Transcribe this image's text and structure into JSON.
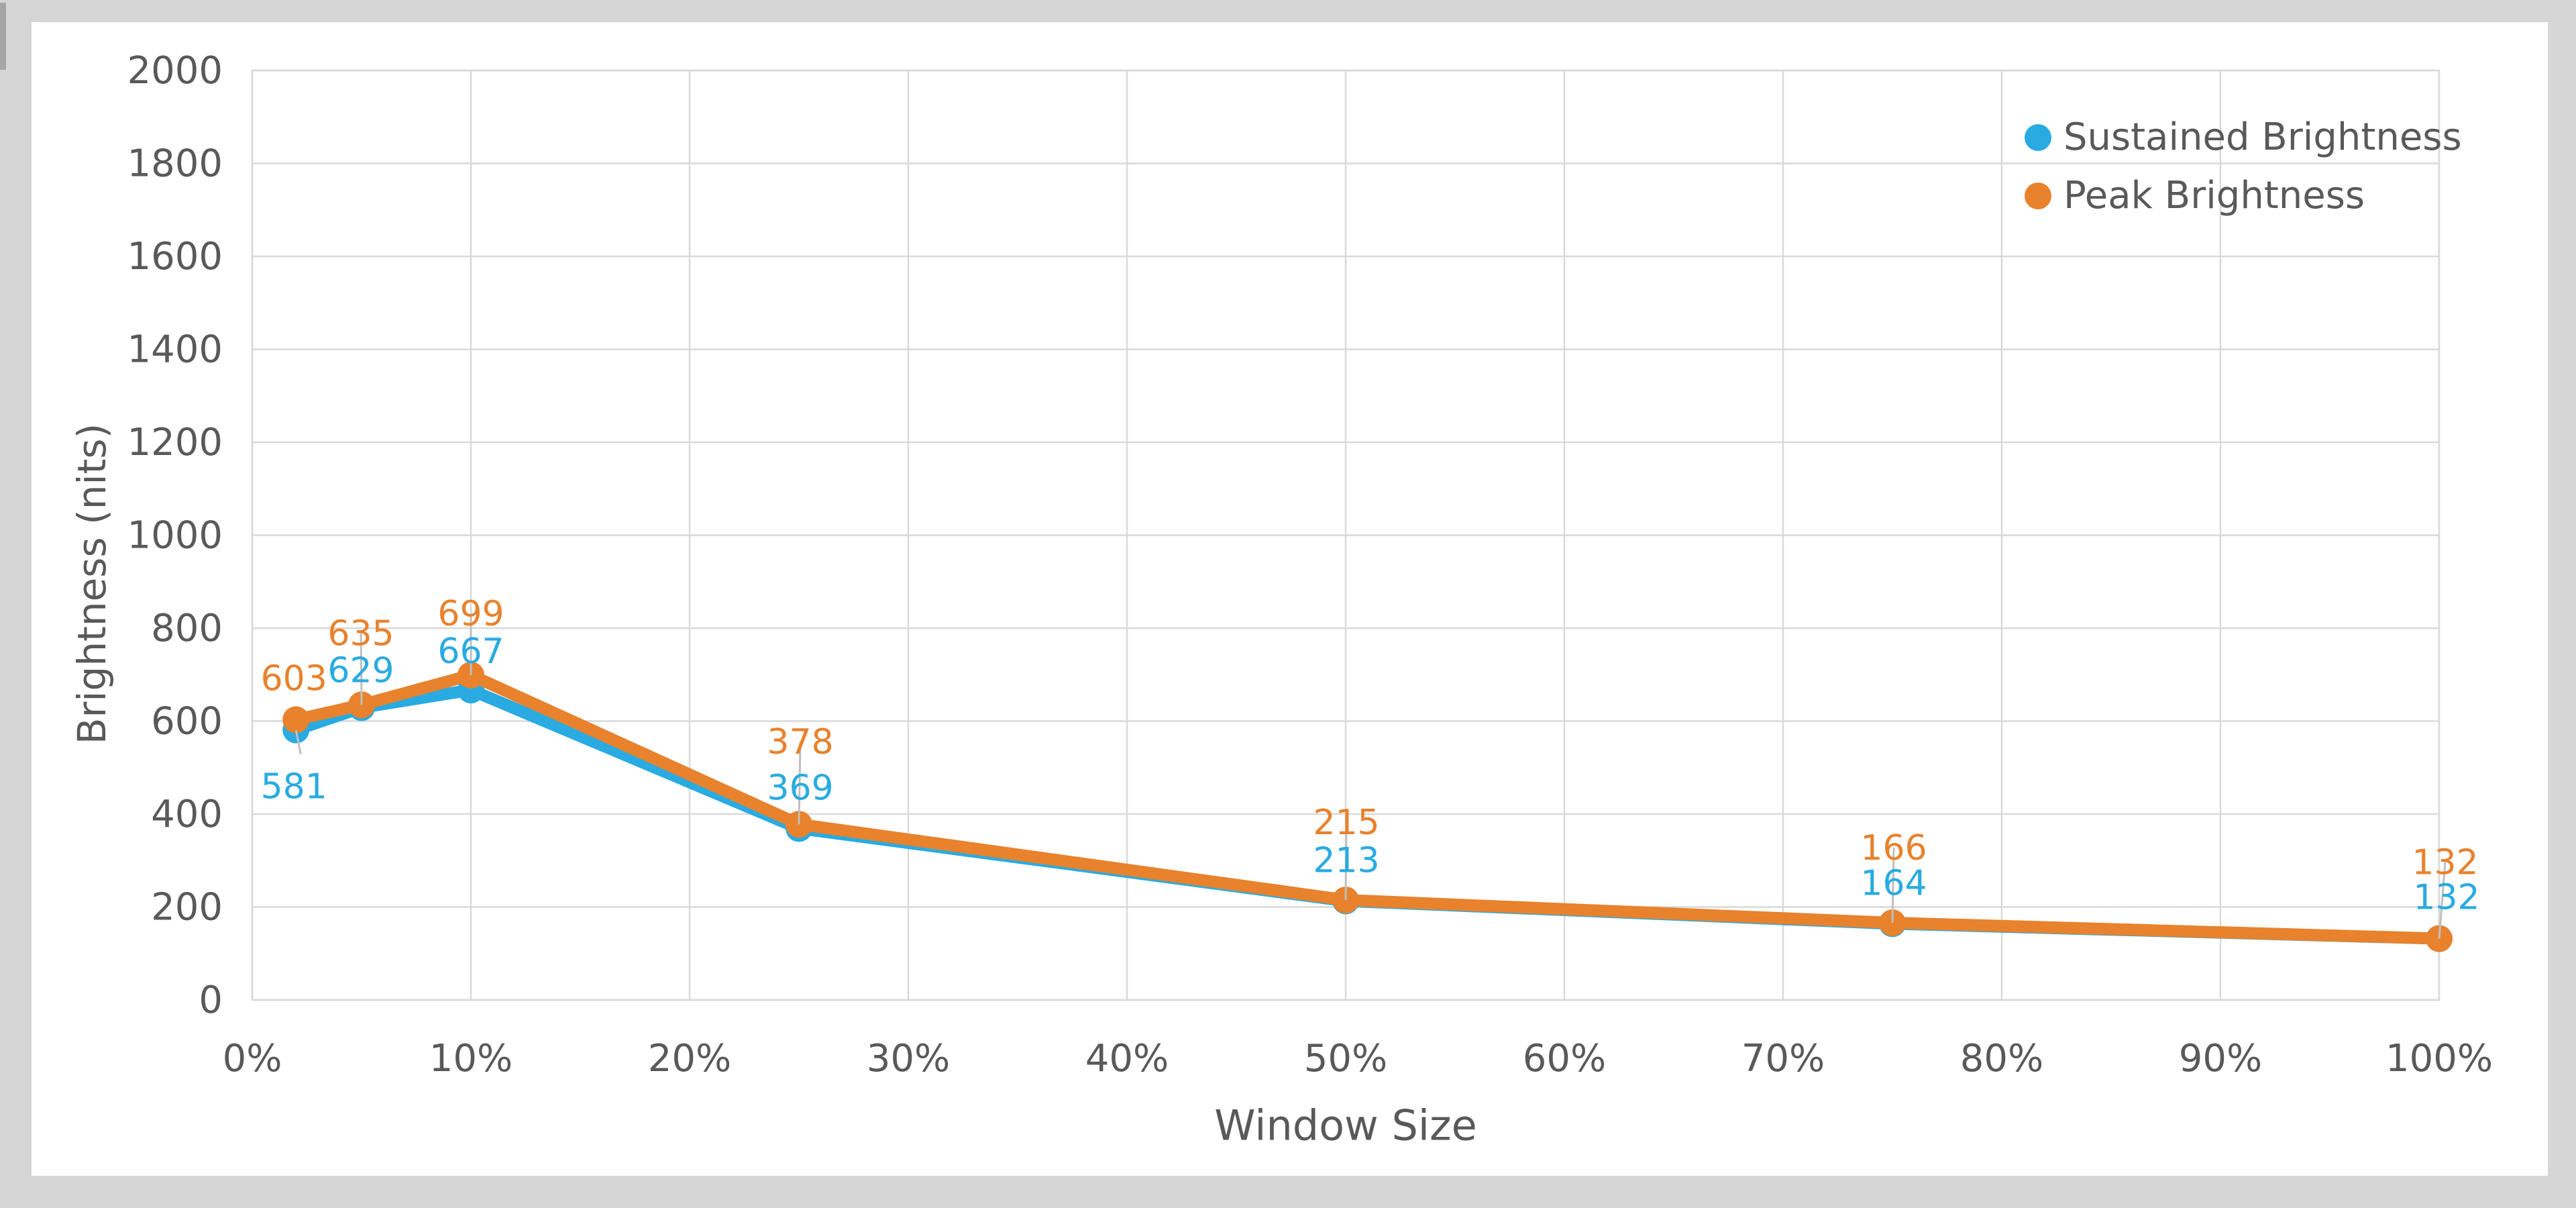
{
  "colors": {
    "background": "#D6D6D6",
    "panel": "#FFFFFF",
    "grid": "#D9D9D9",
    "text": "#595959",
    "leader_line": "#BFBFBF",
    "sustained": "#29ABE2",
    "peak": "#E8822D"
  },
  "chart_data": {
    "type": "line",
    "xlabel": "Window Size",
    "ylabel": "Brightness (nits)",
    "x_percent": [
      2,
      5,
      10,
      25,
      50,
      75,
      100
    ],
    "x_axis_ticks": [
      "0%",
      "10%",
      "20%",
      "30%",
      "40%",
      "50%",
      "60%",
      "70%",
      "80%",
      "90%",
      "100%"
    ],
    "y_axis_ticks": [
      "0",
      "200",
      "400",
      "600",
      "800",
      "1000",
      "1200",
      "1400",
      "1600",
      "1800",
      "2000"
    ],
    "ylim": [
      0,
      2000
    ],
    "xlim_percent": [
      0,
      100
    ],
    "grid": true,
    "legend_position": "top-right",
    "data_labels_shown": true,
    "series": [
      {
        "name": "Sustained Brightness",
        "color": "#29ABE2",
        "values": [
          581,
          629,
          667,
          369,
          213,
          164,
          132
        ]
      },
      {
        "name": "Peak Brightness",
        "color": "#E8822D",
        "values": [
          603,
          635,
          699,
          378,
          215,
          166,
          132
        ]
      }
    ]
  }
}
